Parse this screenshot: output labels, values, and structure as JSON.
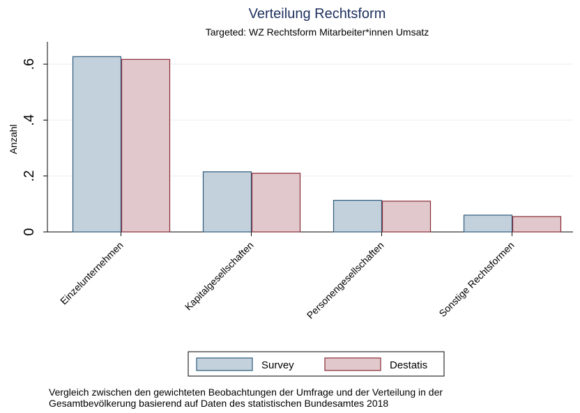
{
  "chart_data": {
    "type": "bar",
    "title": "Verteilung Rechtsform",
    "subtitle": "Targeted: WZ Rechtsform Mitarbeiter*innen Umsatz",
    "y_label": "Anzahl",
    "categories": [
      "Einzelunternehmen",
      "Kapitalgesellschaften",
      "Personengesellschaften",
      "Sonstige Rechtsformen"
    ],
    "series": [
      {
        "name": "Survey",
        "color": "#c3d1dc",
        "edge_color": "#2d5a7b",
        "values": [
          0.627,
          0.215,
          0.113,
          0.06
        ]
      },
      {
        "name": "Destatis",
        "color": "#e0c8cc",
        "edge_color": "#8b2a35",
        "values": [
          0.617,
          0.21,
          0.11,
          0.055
        ]
      }
    ],
    "ylim": [
      0,
      0.68
    ],
    "yticks": [
      0,
      {
        "value": 0.2,
        "label": ".2"
      },
      {
        "value": 0.4,
        "label": ".4"
      },
      {
        "value": 0.6,
        "label": ".6"
      }
    ],
    "grid": true,
    "note": [
      "Vergleich zwischen den gewichteten Beobachtungen der Umfrage und der Verteilung in der",
      "Gesamtbevölkerung basierend auf Daten des statistischen Bundesamtes 2018"
    ]
  }
}
